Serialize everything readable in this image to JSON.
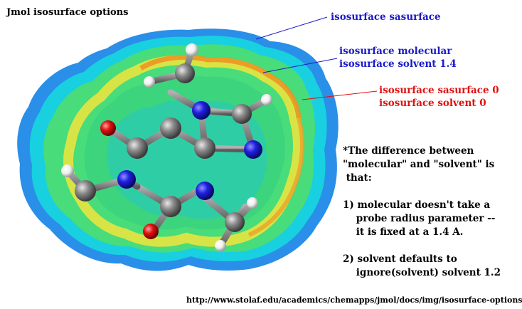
{
  "title": "Jmol isosurface options",
  "labels": {
    "sasurface": {
      "lines": [
        "isosurface sasurface"
      ],
      "color": "#1a1ac8"
    },
    "molecular": {
      "lines": [
        "isosurface molecular",
        "isosurface solvent 1.4"
      ],
      "color": "#1a1ac8"
    },
    "zero": {
      "lines": [
        "isosurface sasurface 0",
        "isosurface solvent 0"
      ],
      "color": "#e01010"
    }
  },
  "note": {
    "intro": [
      "*The difference between",
      "\"molecular\" and \"solvent\" is",
      " that:"
    ],
    "item1": [
      "1) molecular doesn't take a",
      "    probe radius parameter --",
      "    it is fixed at a 1.4 A."
    ],
    "item2": [
      "2) solvent defaults to",
      "    ignore(solvent) solvent 1.2"
    ]
  },
  "url": "http://www.stolaf.edu/academics/chemapps/jmol/docs/img/isosurface-options.jpg",
  "colors": {
    "outer_blue": "#2a8fe8",
    "cyan": "#18d8d8",
    "green": "#40e070",
    "yellow": "#e8e830",
    "orange": "#f0a020",
    "carbon": "#808080",
    "nitrogen": "#2020e0",
    "oxygen": "#e01010",
    "hydrogen": "#f0f0f0"
  }
}
